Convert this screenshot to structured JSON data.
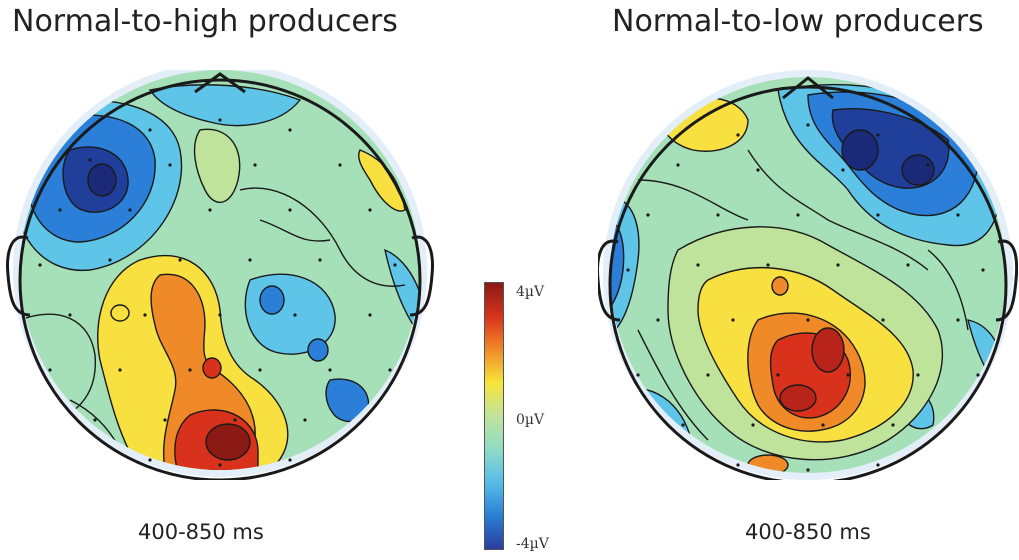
{
  "panels": [
    {
      "title": "Normal-to-high producers",
      "time_window": "400-850 ms"
    },
    {
      "title": "Normal-to-low producers",
      "time_window": "400-850 ms"
    }
  ],
  "colorbar": {
    "max_label": "4µV",
    "mid_label": "0µV",
    "min_label": "-4µV",
    "stops": [
      "#8b1a14",
      "#d8321c",
      "#f08a28",
      "#f7e53a",
      "#bfe39a",
      "#8fdcc6",
      "#56bde8",
      "#2a7fd6",
      "#2b3d9c"
    ]
  },
  "colors": {
    "strong_pos": "#c8281c",
    "pos": "#f08a28",
    "weak_pos": "#f8e040",
    "neutral": "#a6e0b8",
    "weak_neg": "#5ec4e8",
    "neg": "#2b7fd8",
    "strong_neg": "#1f3f9a",
    "halo": "#e3eef8",
    "outline": "#1a1a1a"
  }
}
